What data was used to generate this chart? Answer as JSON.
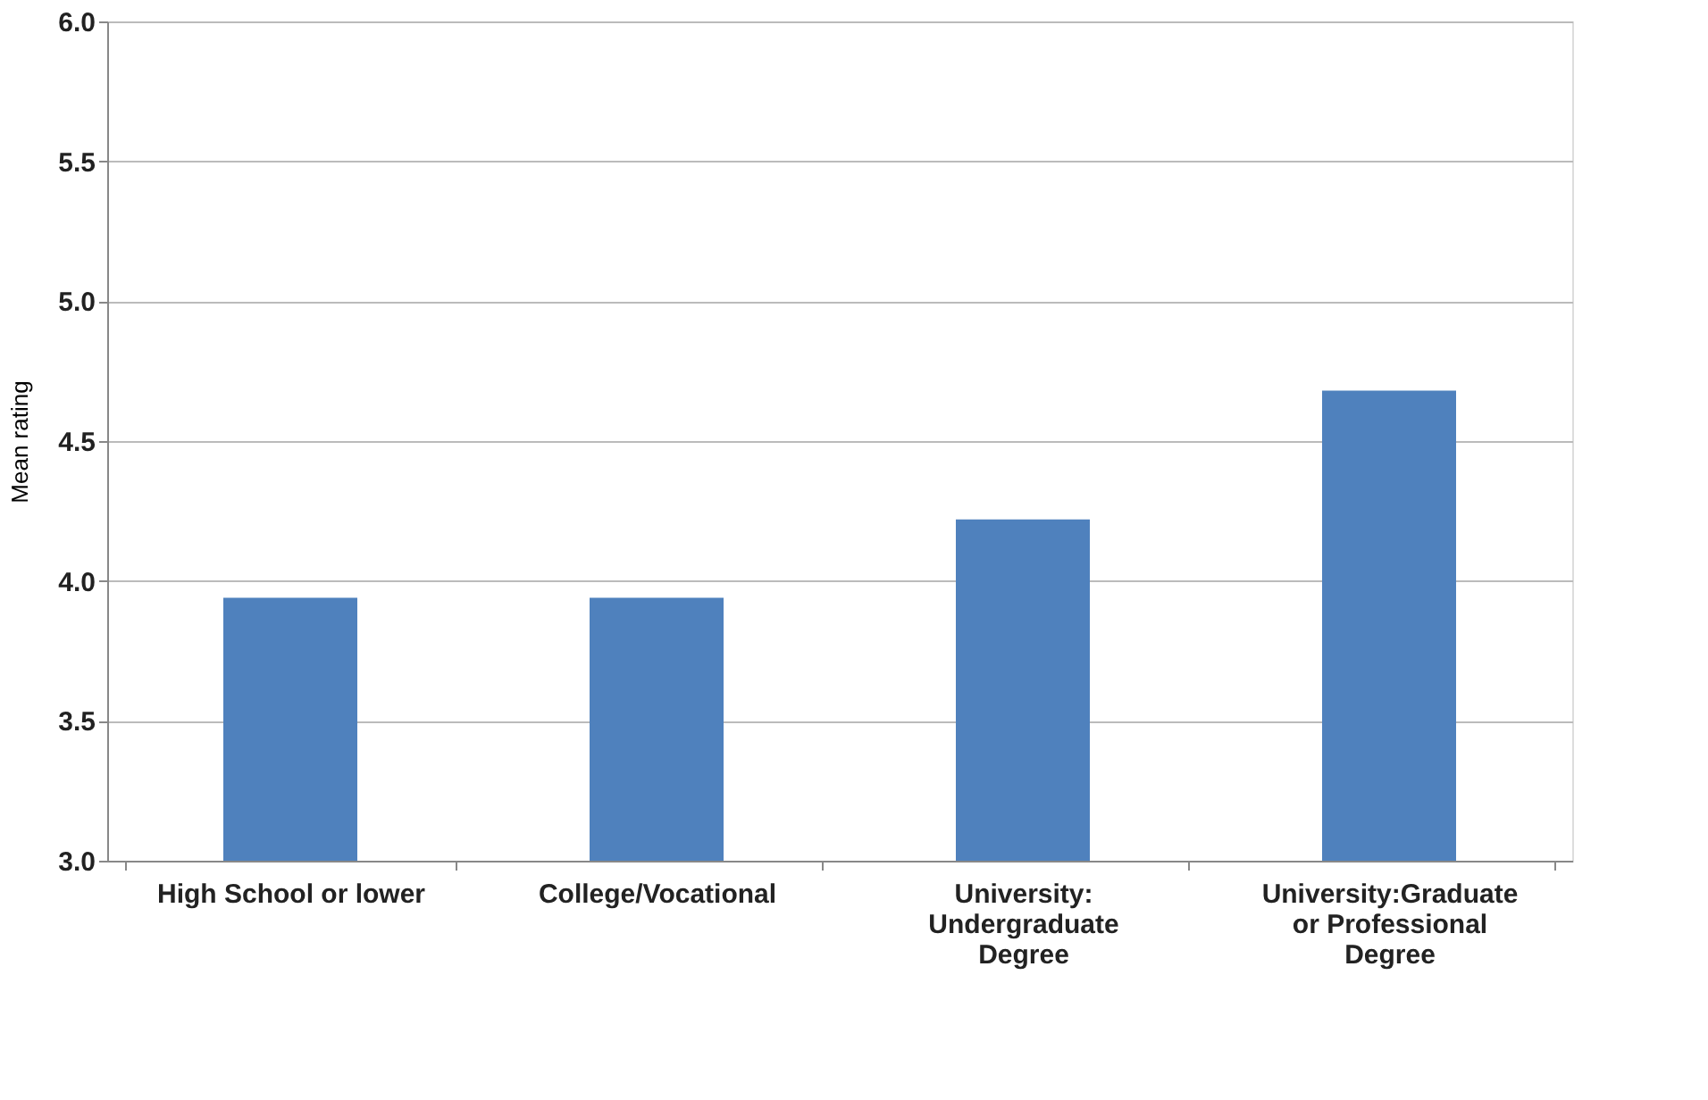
{
  "chart_data": {
    "type": "bar",
    "ylabel": "Mean rating",
    "categories": [
      "High School or lower",
      "College/Vocational",
      "University:\nUndergraduate\nDegree",
      "University:Graduate\nor Professional\nDegree"
    ],
    "values": [
      3.94,
      3.94,
      4.22,
      4.68
    ],
    "color": "#4f81bd",
    "ylim": [
      3.0,
      6.0
    ],
    "yticks": [
      {
        "value": 3.0,
        "label": "3.0"
      },
      {
        "value": 3.5,
        "label": "3.5"
      },
      {
        "value": 4.0,
        "label": "4.0"
      },
      {
        "value": 4.5,
        "label": "4.5"
      },
      {
        "value": 5.0,
        "label": "5.0"
      },
      {
        "value": 5.5,
        "label": "5.5"
      },
      {
        "value": 6.0,
        "label": "6.0"
      }
    ],
    "grid": "y"
  }
}
